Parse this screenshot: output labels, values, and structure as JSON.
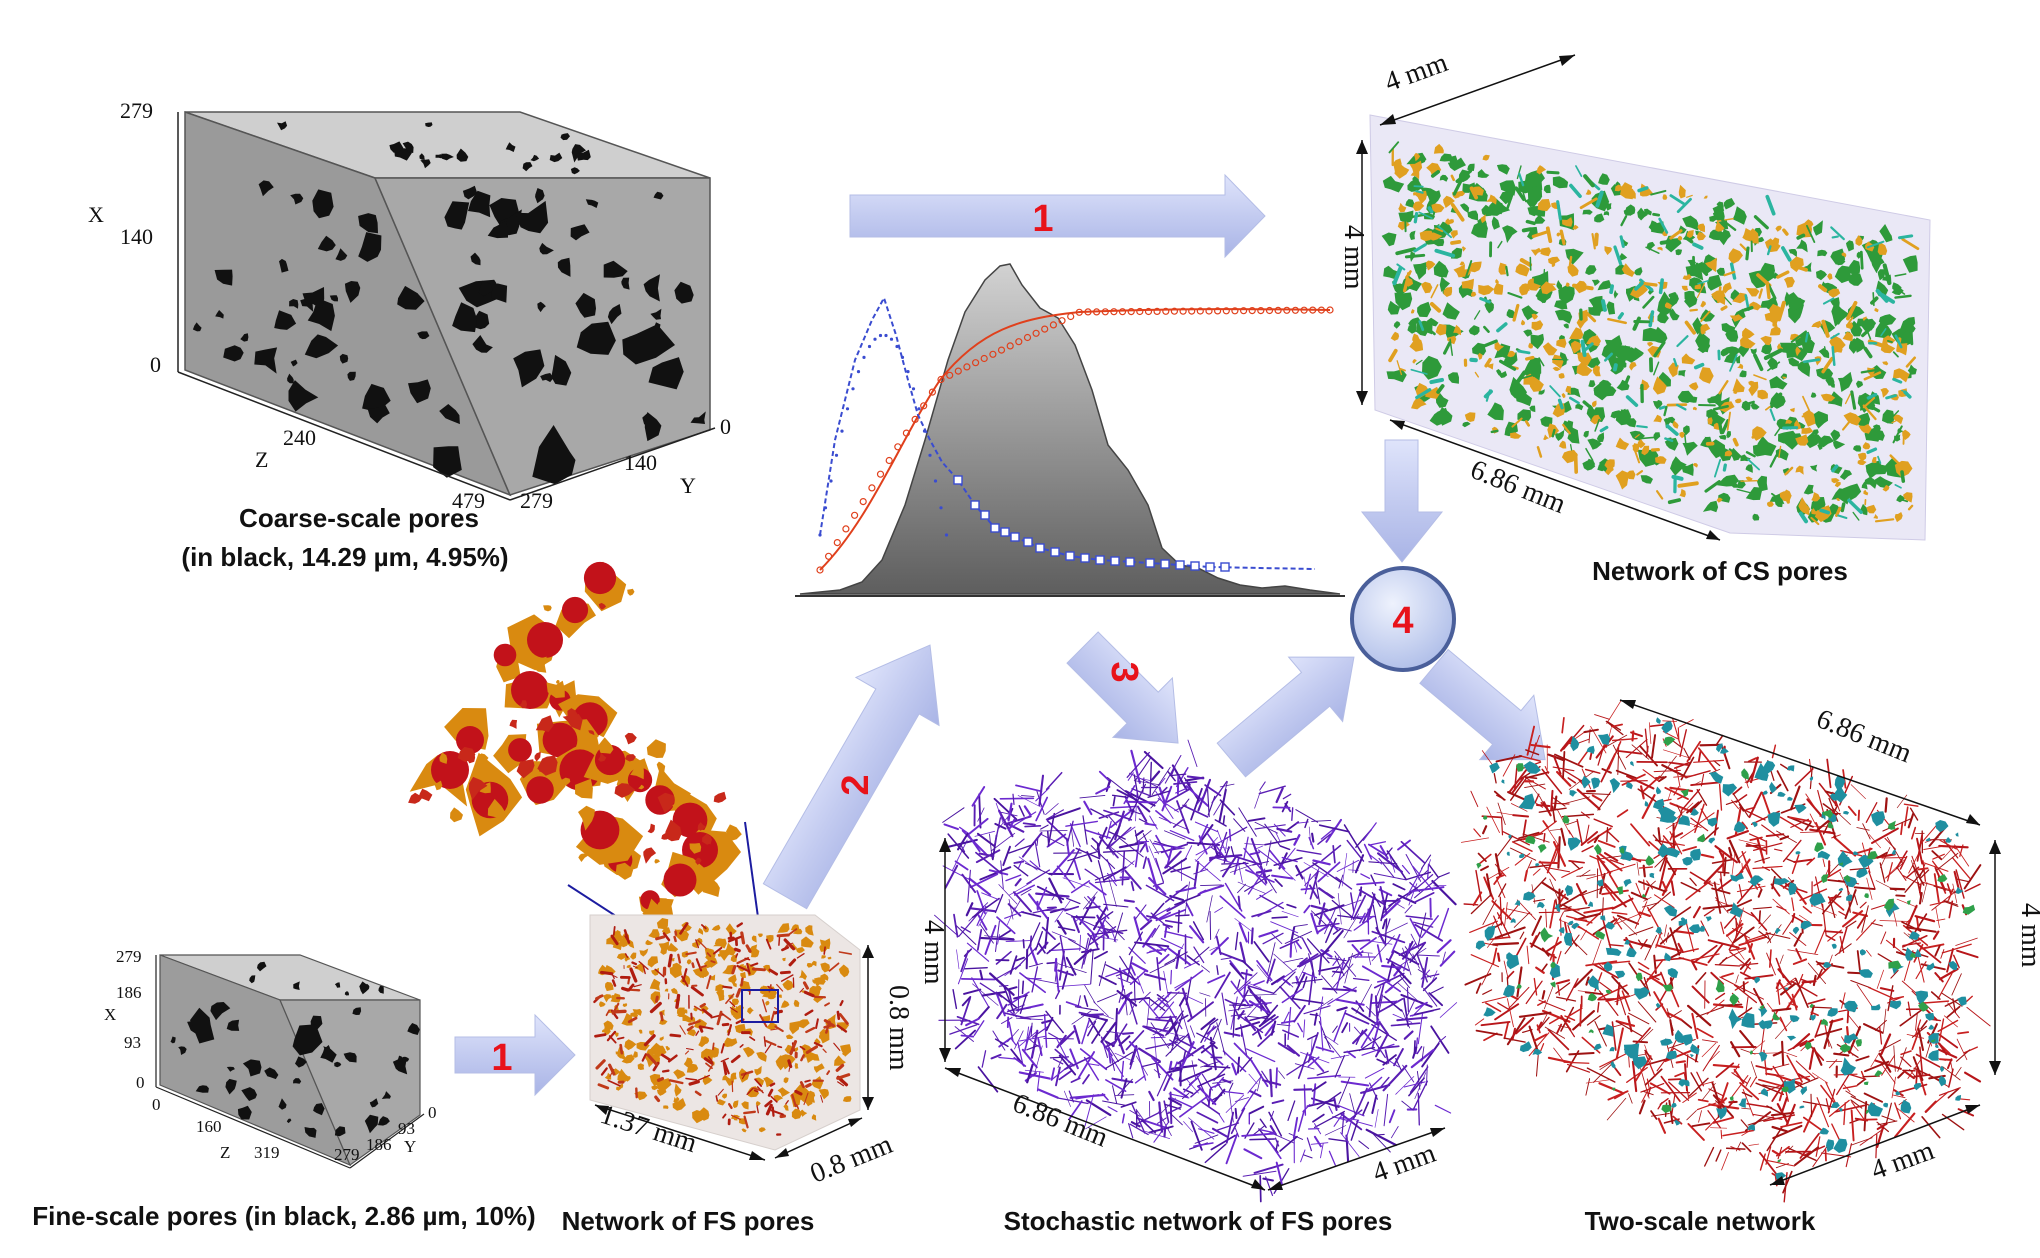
{
  "captions": {
    "coarse_line1": "Coarse-scale pores",
    "coarse_line2": "(in black, 14.29 µm, 4.95%)",
    "fine": "Fine-scale pores (in black, 2.86 µm, 10%)",
    "fs_network": "Network of FS pores",
    "stochastic": "Stochastic network of FS pores",
    "two_scale": "Two-scale network",
    "cs_network": "Network of CS pores"
  },
  "coarse_axes": {
    "x_label": "X",
    "y_label": "Y",
    "z_label": "Z",
    "x_ticks": [
      "279",
      "140",
      "0"
    ],
    "z_ticks": [
      "240",
      "479"
    ],
    "y_ticks": [
      "0",
      "140",
      "279"
    ]
  },
  "fine_axes": {
    "x_label": "X",
    "y_label": "Y",
    "z_label": "Z",
    "x_ticks": [
      "279",
      "186",
      "93",
      "0"
    ],
    "z_ticks": [
      "0",
      "160",
      "319"
    ],
    "y_ticks": [
      "0",
      "93",
      "186",
      "279"
    ]
  },
  "dimensions": {
    "cs_width": "4 mm",
    "cs_height": "4 mm",
    "cs_length": "6.86 mm",
    "fs_length": "1.37 mm",
    "fs_height": "0.8 mm",
    "fs_depth": "0.8 mm",
    "st_height": "4 mm",
    "st_length": "6.86 mm",
    "st_depth": "4 mm",
    "ts_length": "6.86 mm",
    "ts_height": "4 mm",
    "ts_depth": "4 mm"
  },
  "steps": {
    "step1_top": "1",
    "step1_bottom": "1",
    "step2": "2",
    "step3": "3",
    "step4": "4"
  },
  "colors": {
    "arrow_fill": "#c3cbf0",
    "step_label": "#e8121a",
    "node_fill": "#c9d4f2",
    "node_stroke": "#4a5f9a",
    "cs_network_green": "#2e9a3a",
    "cs_network_orange": "#e0a020",
    "fs_network_red": "#b01c10",
    "fs_network_orange": "#d98a10",
    "stochastic_purple": "#5a1eb4",
    "two_scale_red": "#b8161a",
    "two_scale_teal": "#1f8fa0",
    "cube_gray": "#aaaaaa",
    "histogram_fill": "#9a9a9a",
    "curve_red": "#e0401c",
    "curve_blue": "#3a4cd0"
  }
}
